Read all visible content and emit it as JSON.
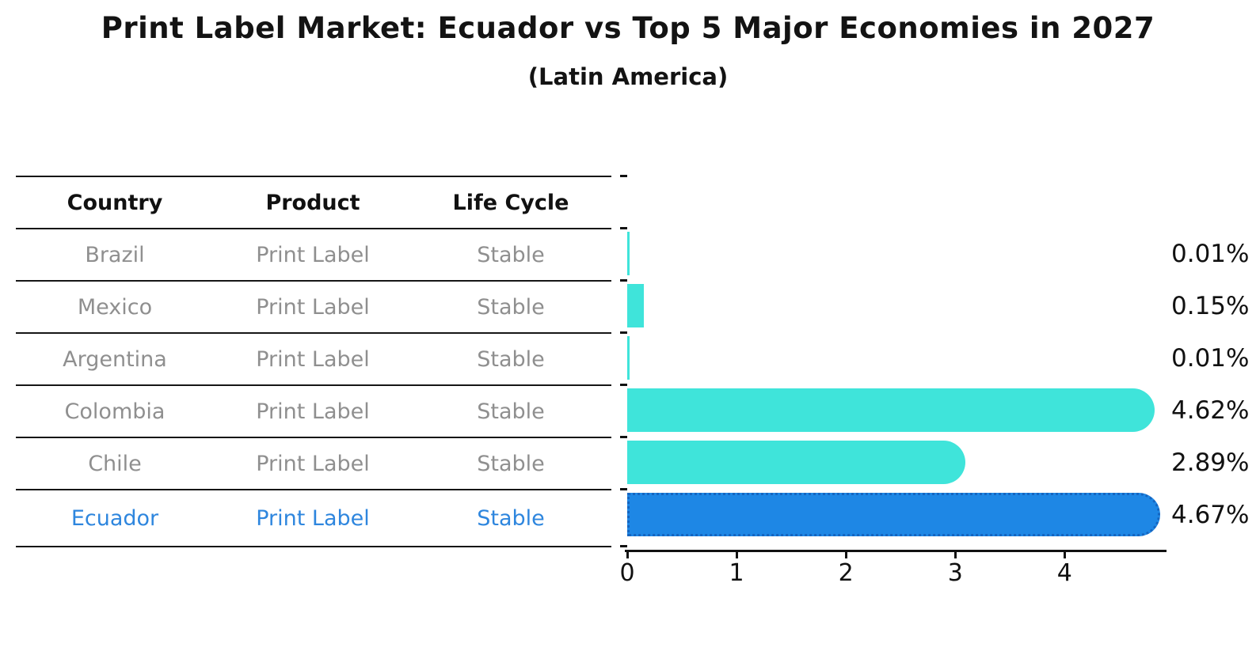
{
  "title": "Print Label Market: Ecuador vs Top 5 Major Economies in 2027",
  "subtitle": "(Latin America)",
  "table": {
    "headers": [
      "Country",
      "Product",
      "Life Cycle"
    ],
    "rows": [
      {
        "country": "Brazil",
        "product": "Print Label",
        "life_cycle": "Stable",
        "highlighted": false
      },
      {
        "country": "Mexico",
        "product": "Print Label",
        "life_cycle": "Stable",
        "highlighted": false
      },
      {
        "country": "Argentina",
        "product": "Print Label",
        "life_cycle": "Stable",
        "highlighted": false
      },
      {
        "country": "Colombia",
        "product": "Print Label",
        "life_cycle": "Stable",
        "highlighted": false
      },
      {
        "country": "Chile",
        "product": "Print Label",
        "life_cycle": "Stable",
        "highlighted": false
      },
      {
        "country": "Ecuador",
        "product": "Print Label",
        "life_cycle": "Stable",
        "highlighted": true
      }
    ]
  },
  "chart_data": {
    "type": "bar",
    "orientation": "horizontal",
    "title": "Print Label Market: Ecuador vs Top 5 Major Economies in 2027",
    "subtitle": "(Latin America)",
    "categories": [
      "Brazil",
      "Mexico",
      "Argentina",
      "Colombia",
      "Chile",
      "Ecuador"
    ],
    "values": [
      0.01,
      0.15,
      0.01,
      4.62,
      2.89,
      4.67
    ],
    "value_labels": [
      "0.01%",
      "0.15%",
      "0.01%",
      "4.62%",
      "2.89%",
      "4.67%"
    ],
    "x_ticks": [
      "0",
      "1",
      "2",
      "3",
      "4"
    ],
    "xlim": [
      0,
      4.91
    ],
    "grid": false,
    "legend": false,
    "highlight_index": 5,
    "colors": {
      "bar": "#3FE4DA",
      "highlight_bar": "#1E87E5",
      "highlight_border": "#1565C0"
    }
  },
  "colors": {
    "title": "#131313",
    "header_text": "#111111",
    "row_text": "#8F8F8F",
    "highlight_text": "#2E86DE",
    "line": "#161616",
    "axis": "#111111",
    "value_label": "#111111"
  }
}
